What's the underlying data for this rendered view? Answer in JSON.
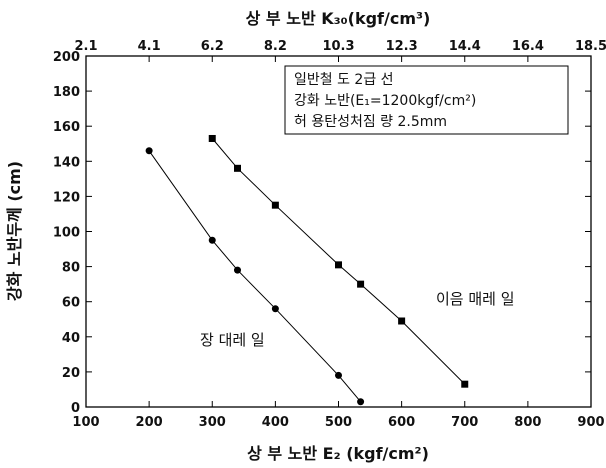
{
  "chart_data": {
    "type": "line",
    "xlabel": "상 부 노반 E₂ (kgf/cm²)",
    "ylabel": "강화 노반두께 (cm)",
    "x2label": "상 부 노반 K₃₀(kgf/cm³)",
    "xlim": [
      100,
      900
    ],
    "ylim": [
      0,
      200
    ],
    "x_ticks": [
      100,
      200,
      300,
      400,
      500,
      600,
      700,
      800,
      900
    ],
    "y_ticks": [
      0,
      20,
      40,
      60,
      80,
      100,
      120,
      140,
      160,
      180,
      200
    ],
    "x2_ticks": [
      "2.1",
      "4.1",
      "6.2",
      "8.2",
      "10.3",
      "12.3",
      "14.4",
      "16.4",
      "18.5"
    ],
    "info_box": [
      "일반철 도 2급 선",
      "강화 노반(E₁=1200kgf/cm²)",
      "허 용탄성처짐 량 2.5mm"
    ],
    "series": [
      {
        "name": "장 대레 일",
        "marker": "circle",
        "points": [
          [
            200,
            146
          ],
          [
            300,
            95
          ],
          [
            340,
            78
          ],
          [
            400,
            56
          ],
          [
            500,
            18
          ],
          [
            535,
            3
          ]
        ]
      },
      {
        "name": "이음 매레 일",
        "marker": "square",
        "points": [
          [
            300,
            153
          ],
          [
            340,
            136
          ],
          [
            400,
            115
          ],
          [
            500,
            81
          ],
          [
            535,
            70
          ],
          [
            600,
            49
          ],
          [
            700,
            13
          ]
        ]
      }
    ],
    "grid": false,
    "colors": {
      "line": "#000000",
      "marker": "#000000"
    }
  }
}
